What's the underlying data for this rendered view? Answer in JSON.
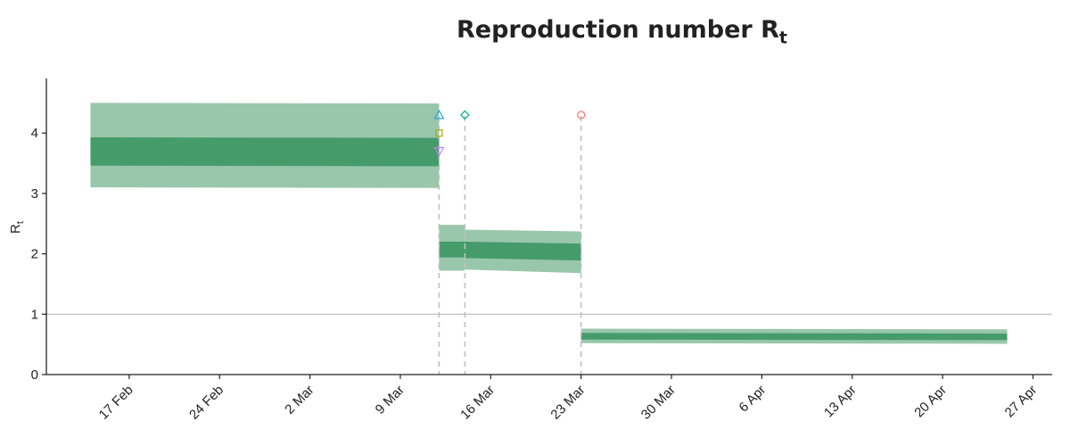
{
  "chart_data": {
    "type": "area",
    "title": "Reproduction number R",
    "title_subscript": "t",
    "ylabel": "R",
    "ylabel_subscript": "t",
    "xlabel": "",
    "x_type": "date",
    "xlim": [
      "2020-02-10",
      "2020-04-27"
    ],
    "ylim": [
      0,
      4.9
    ],
    "y_ticks": [
      0,
      1,
      2,
      3,
      4
    ],
    "x_ticks": [
      {
        "date": "2020-02-17",
        "label": "17 Feb"
      },
      {
        "date": "2020-02-24",
        "label": "24 Feb"
      },
      {
        "date": "2020-03-02",
        "label": "2 Mar"
      },
      {
        "date": "2020-03-09",
        "label": "9 Mar"
      },
      {
        "date": "2020-03-16",
        "label": "16 Mar"
      },
      {
        "date": "2020-03-23",
        "label": "23 Mar"
      },
      {
        "date": "2020-03-30",
        "label": "30 Mar"
      },
      {
        "date": "2020-04-06",
        "label": "6 Apr"
      },
      {
        "date": "2020-04-13",
        "label": "13 Apr"
      },
      {
        "date": "2020-04-20",
        "label": "20 Apr"
      },
      {
        "date": "2020-04-27",
        "label": "27 Apr"
      }
    ],
    "reference_line": 1,
    "grid": false,
    "colors": {
      "outer_band": "#99c7ab",
      "inner_band": "#469b6b",
      "reference": "#bdbdbd",
      "intervention": "#c0c0c0"
    },
    "segments": [
      {
        "start": "2020-02-14",
        "end": "2020-03-12",
        "outer_low": [
          3.1,
          3.09
        ],
        "outer_high": [
          4.5,
          4.49
        ],
        "inner_low": [
          3.46,
          3.45
        ],
        "inner_high": [
          3.93,
          3.92
        ]
      },
      {
        "start": "2020-03-12",
        "end": "2020-03-14",
        "outer_low": [
          1.72,
          1.72
        ],
        "outer_high": [
          2.48,
          2.48
        ],
        "inner_low": [
          1.94,
          1.94
        ],
        "inner_high": [
          2.2,
          2.2
        ]
      },
      {
        "start": "2020-03-14",
        "end": "2020-03-23",
        "outer_low": [
          1.74,
          1.68
        ],
        "outer_high": [
          2.4,
          2.37
        ],
        "inner_low": [
          1.93,
          1.89
        ],
        "inner_high": [
          2.2,
          2.17
        ]
      },
      {
        "start": "2020-03-23",
        "end": "2020-04-25",
        "outer_low": [
          0.52,
          0.51
        ],
        "outer_high": [
          0.76,
          0.75
        ],
        "inner_low": [
          0.58,
          0.57
        ],
        "inner_high": [
          0.69,
          0.68
        ]
      }
    ],
    "interventions": [
      {
        "date": "2020-03-12",
        "markers": [
          {
            "shape": "triangle-up",
            "color": "#2fa3d8",
            "y": 4.3
          },
          {
            "shape": "square",
            "color": "#a5ad14",
            "y": 4.0
          },
          {
            "shape": "triangle-down",
            "color": "#c77cff",
            "y": 3.7
          }
        ]
      },
      {
        "date": "2020-03-14",
        "markers": [
          {
            "shape": "diamond",
            "color": "#00b388",
            "y": 4.3
          }
        ]
      },
      {
        "date": "2020-03-23",
        "markers": [
          {
            "shape": "circle",
            "color": "#f8766d",
            "y": 4.3
          }
        ]
      }
    ]
  }
}
